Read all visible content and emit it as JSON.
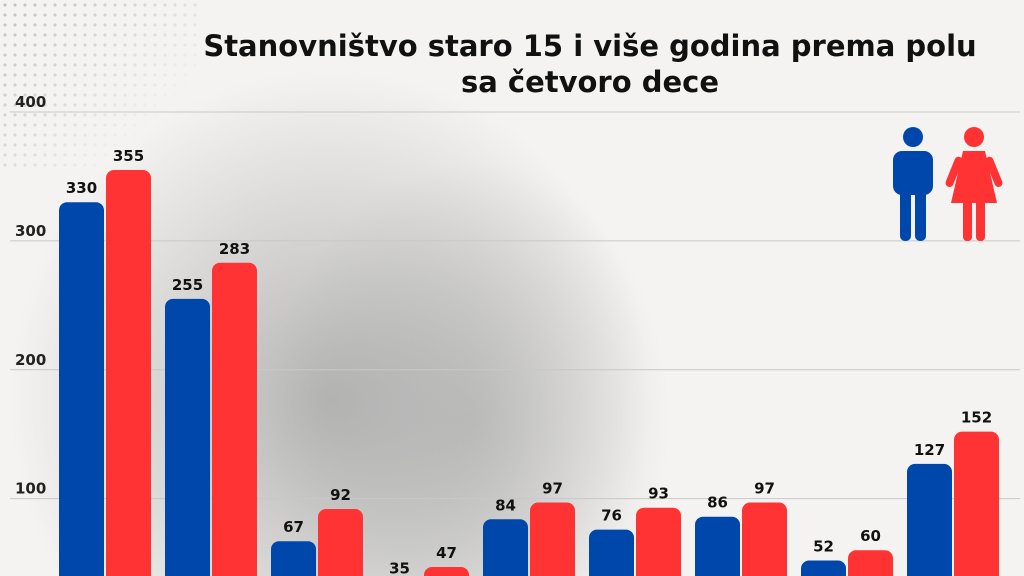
{
  "colors": {
    "male": "#0047ab",
    "female": "#ff3333",
    "grid": "#c8c8c8",
    "text": "#111111"
  },
  "legend": {
    "male_icon": "male-figure-icon",
    "female_icon": "female-figure-icon"
  },
  "chart_data": {
    "type": "bar",
    "title": "Stanovništvo staro 15 i više godina prema polu sa četvoro dece",
    "title_lines": [
      "Stanovništvo staro 15 i više godina prema polu",
      "sa četvoro dece"
    ],
    "categories": [
      "",
      "",
      "",
      "",
      "",
      "",
      "",
      "",
      ""
    ],
    "series": [
      {
        "color": "#0047ab",
        "values": [
          330,
          255,
          67,
          35,
          84,
          76,
          86,
          52,
          127
        ]
      },
      {
        "color": "#ff3333",
        "values": [
          355,
          283,
          92,
          47,
          97,
          93,
          97,
          60,
          152
        ]
      }
    ],
    "ylim": [
      40,
      400
    ],
    "yticks": [
      100,
      200,
      300,
      400
    ],
    "grid": true,
    "legend_position": "top-right",
    "data_labels": true
  }
}
